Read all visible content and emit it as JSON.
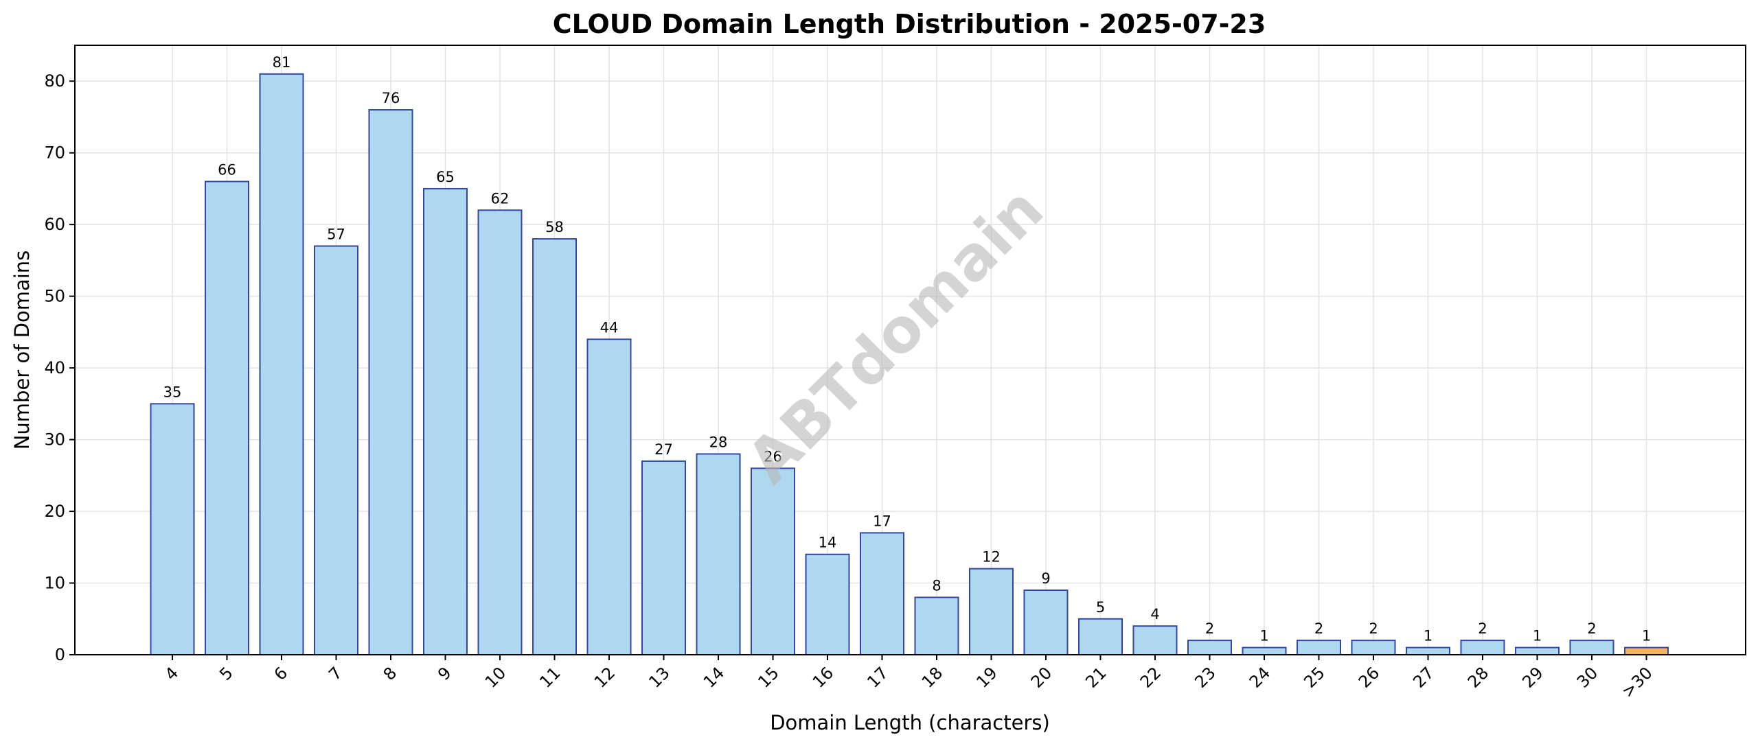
{
  "chart_data": {
    "type": "bar",
    "title": "CLOUD Domain Length Distribution - 2025-07-23",
    "xlabel": "Domain Length (characters)",
    "ylabel": "Number of Domains",
    "categories": [
      "4",
      "5",
      "6",
      "7",
      "8",
      "9",
      "10",
      "11",
      "12",
      "13",
      "14",
      "15",
      "16",
      "17",
      "18",
      "19",
      "20",
      "21",
      "22",
      "23",
      "24",
      "25",
      "26",
      "27",
      "28",
      "29",
      "30",
      ">30"
    ],
    "values": [
      35,
      66,
      81,
      57,
      76,
      65,
      62,
      58,
      44,
      27,
      28,
      26,
      14,
      17,
      8,
      12,
      9,
      5,
      4,
      2,
      1,
      2,
      2,
      1,
      2,
      1,
      2,
      1
    ],
    "ylim": [
      0,
      85
    ],
    "yticks": [
      0,
      10,
      20,
      30,
      40,
      50,
      60,
      70,
      80
    ],
    "grid": true,
    "colors": {
      "bar_fill": "#add8ef",
      "bar_edge": "#3346a8",
      "highlight_fill": "#f5b25c",
      "highlight_edge": "#3346a8",
      "grid": "#e2e2e2"
    },
    "highlight_category": ">30",
    "watermark": "ABTdomain"
  }
}
